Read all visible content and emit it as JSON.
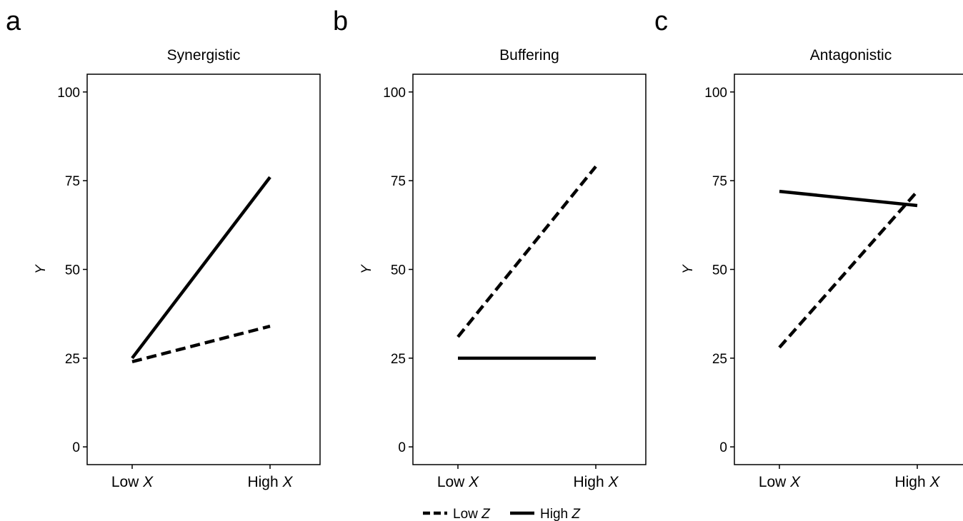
{
  "chart_data": [
    {
      "type": "line",
      "panel_letter": "a",
      "title": "Synergistic",
      "ylabel": "Y",
      "categories": [
        "Low X",
        "High X"
      ],
      "yticks": [
        0,
        25,
        50,
        75,
        100
      ],
      "ylim": [
        -5,
        105
      ],
      "series": [
        {
          "name": "Low Z",
          "style": "dashed",
          "values": [
            24,
            34
          ]
        },
        {
          "name": "High Z",
          "style": "solid",
          "values": [
            25,
            76
          ]
        }
      ]
    },
    {
      "type": "line",
      "panel_letter": "b",
      "title": "Buffering",
      "ylabel": "Y",
      "categories": [
        "Low X",
        "High X"
      ],
      "yticks": [
        0,
        25,
        50,
        75,
        100
      ],
      "ylim": [
        -5,
        105
      ],
      "series": [
        {
          "name": "Low Z",
          "style": "dashed",
          "values": [
            31,
            79
          ]
        },
        {
          "name": "High Z",
          "style": "solid",
          "values": [
            25,
            25
          ]
        }
      ]
    },
    {
      "type": "line",
      "panel_letter": "c",
      "title": "Antagonistic",
      "ylabel": "Y",
      "categories": [
        "Low X",
        "High X"
      ],
      "yticks": [
        0,
        25,
        50,
        75,
        100
      ],
      "ylim": [
        -5,
        105
      ],
      "series": [
        {
          "name": "Low Z",
          "style": "dashed",
          "values": [
            28,
            72
          ]
        },
        {
          "name": "High Z",
          "style": "solid",
          "values": [
            72,
            68
          ]
        }
      ]
    }
  ],
  "legend": {
    "position": "bottom-center",
    "items": [
      {
        "label": "Low Z",
        "style": "dashed"
      },
      {
        "label": "High Z",
        "style": "solid"
      }
    ]
  },
  "colors": {
    "line": "#000000",
    "background": "#ffffff"
  }
}
